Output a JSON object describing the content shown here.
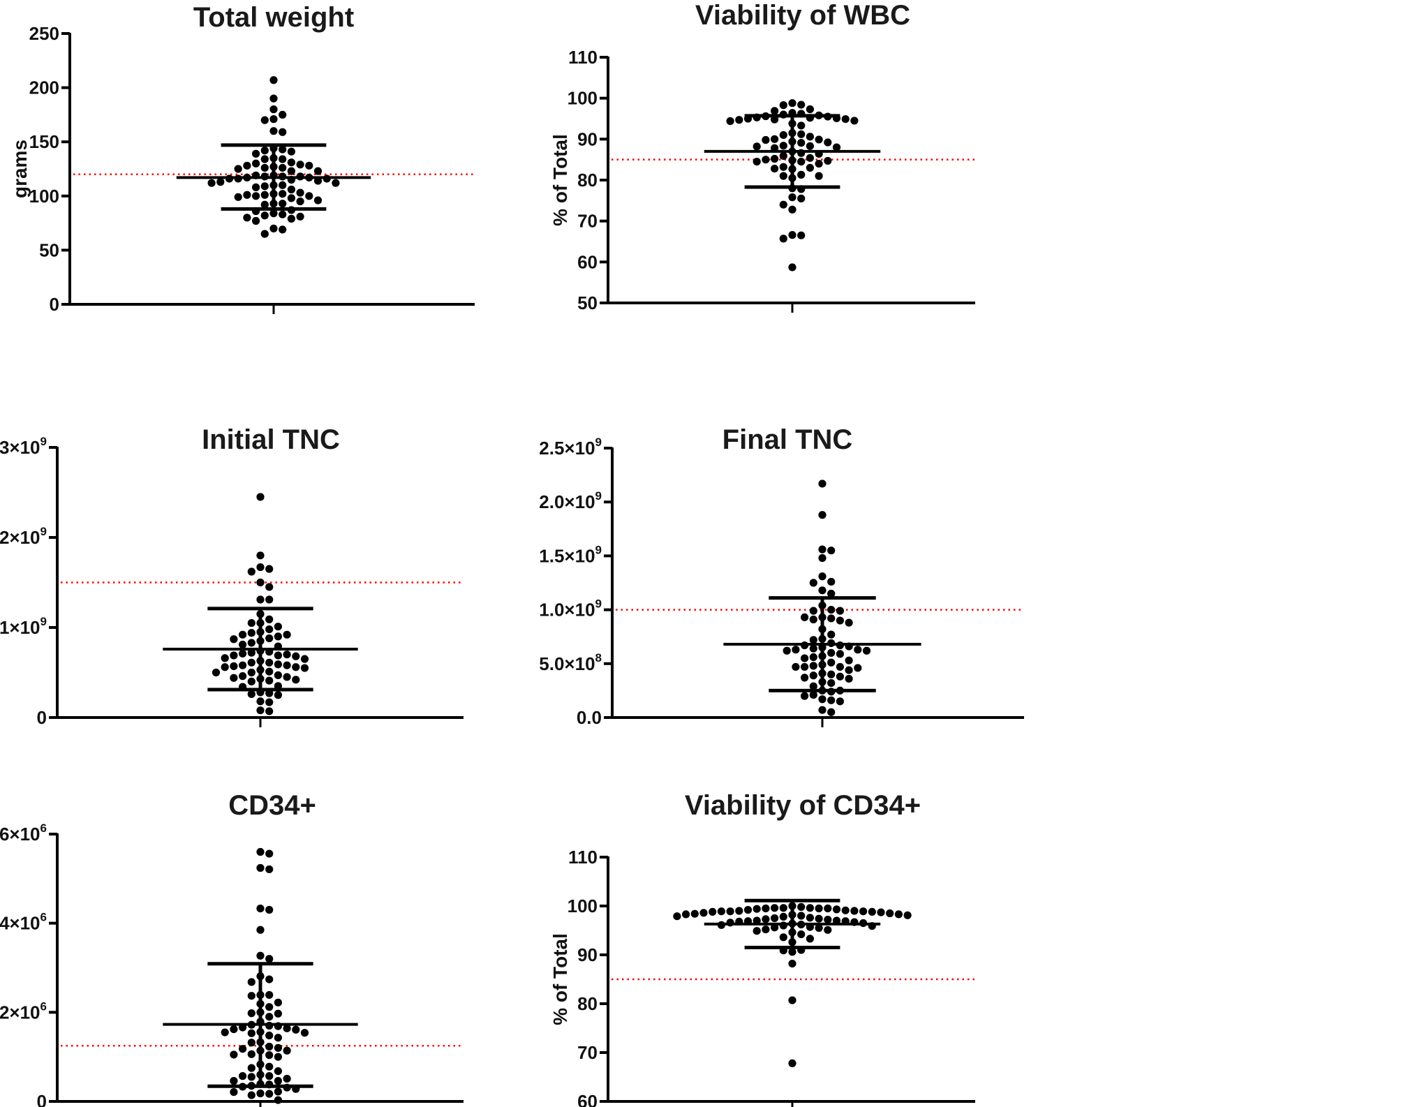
{
  "figure": {
    "background": "#ffffff",
    "point_color": "#000000",
    "threshold_color": "#ff0000"
  },
  "chart_data": [
    {
      "type": "scatter",
      "subtype": "dot-plot-mean-sd",
      "title": "Total weight",
      "ylabel": "grams",
      "xlabel": "",
      "ylim": [
        0,
        250
      ],
      "yticks": [
        0,
        50,
        100,
        150,
        200,
        250
      ],
      "ytick_labels": [
        "0",
        "50",
        "100",
        "150",
        "200",
        "250"
      ],
      "mean": 117,
      "sd_upper": 147,
      "sd_lower": 88,
      "threshold": 120,
      "values": [
        207,
        190,
        180,
        175,
        171,
        170,
        160,
        159,
        144,
        143,
        142,
        141,
        139,
        135,
        134,
        134,
        131,
        130,
        129,
        128,
        128,
        127,
        126,
        126,
        125,
        123,
        123,
        119,
        119,
        118,
        118,
        118,
        117,
        117,
        116,
        116,
        116,
        115,
        114,
        113,
        112,
        112,
        110,
        110,
        109,
        108,
        106,
        103,
        102,
        102,
        101,
        101,
        100,
        100,
        99,
        98,
        96,
        95,
        93,
        93,
        92,
        87,
        86,
        84,
        83,
        82,
        81,
        80,
        79,
        77,
        70,
        69,
        65
      ]
    },
    {
      "type": "scatter",
      "subtype": "dot-plot-mean-sd",
      "title": "Viability of WBC",
      "ylabel": "% of Total",
      "xlabel": "",
      "ylim": [
        50,
        110
      ],
      "yticks": [
        50,
        60,
        70,
        80,
        90,
        100,
        110
      ],
      "ytick_labels": [
        "50",
        "60",
        "70",
        "80",
        "90",
        "100",
        "110"
      ],
      "mean": 87,
      "sd_upper": 95.7,
      "sd_lower": 78.3,
      "threshold": 85,
      "values": [
        98.8,
        98.4,
        98.3,
        97.3,
        96.9,
        96.4,
        96.2,
        96.0,
        95.8,
        95.6,
        95.5,
        95.3,
        95.2,
        95.1,
        95.0,
        94.9,
        94.8,
        94.7,
        94.5,
        94.4,
        93.8,
        93.3,
        91.5,
        91.2,
        91.0,
        90.6,
        90.0,
        89.9,
        89.8,
        89.4,
        89.2,
        89.1,
        88.4,
        88.3,
        88.2,
        88.0,
        87.8,
        87.0,
        86.6,
        86.4,
        85.9,
        85.4,
        85.2,
        85.0,
        84.8,
        84.7,
        84.5,
        84.5,
        84.0,
        83.2,
        83.0,
        82.8,
        82.7,
        81.3,
        81.0,
        81.0,
        80.5,
        78.0,
        77.8,
        75.8,
        75.5,
        74.0,
        72.8,
        66.6,
        66.5,
        65.7,
        58.7
      ]
    },
    {
      "type": "scatter",
      "subtype": "dot-plot-mean-sd",
      "title": "Initial TNC",
      "ylabel": "",
      "xlabel": "",
      "ylim": [
        0,
        3000000000
      ],
      "yticks": [
        0,
        1000000000,
        2000000000,
        3000000000
      ],
      "ytick_labels": [
        {
          "base": "0",
          "exp": ""
        },
        {
          "base": "1×10",
          "exp": "9"
        },
        {
          "base": "2×10",
          "exp": "9"
        },
        {
          "base": "3×10",
          "exp": "9"
        }
      ],
      "mean": 760000000,
      "sd_upper": 1210000000,
      "sd_lower": 310000000,
      "threshold": 1500000000,
      "values": [
        2450000000,
        1800000000,
        1670000000,
        1650000000,
        1620000000,
        1500000000,
        1450000000,
        1310000000,
        1310000000,
        1150000000,
        1090000000,
        1050000000,
        1050000000,
        1010000000,
        980000000,
        950000000,
        940000000,
        920000000,
        920000000,
        900000000,
        880000000,
        870000000,
        850000000,
        830000000,
        810000000,
        790000000,
        740000000,
        730000000,
        720000000,
        710000000,
        700000000,
        690000000,
        690000000,
        680000000,
        660000000,
        650000000,
        630000000,
        610000000,
        610000000,
        590000000,
        580000000,
        580000000,
        570000000,
        560000000,
        560000000,
        550000000,
        530000000,
        510000000,
        500000000,
        500000000,
        470000000,
        460000000,
        450000000,
        440000000,
        430000000,
        420000000,
        410000000,
        400000000,
        350000000,
        340000000,
        280000000,
        270000000,
        260000000,
        250000000,
        180000000,
        170000000,
        80000000,
        70000000
      ]
    },
    {
      "type": "scatter",
      "subtype": "dot-plot-mean-sd",
      "title": "Final TNC",
      "ylabel": "",
      "xlabel": "",
      "ylim": [
        0,
        2500000000
      ],
      "yticks": [
        0,
        500000000,
        1000000000,
        1500000000,
        2000000000,
        2500000000
      ],
      "ytick_labels": [
        {
          "base": "0.0",
          "exp": ""
        },
        {
          "base": "5.0×10",
          "exp": "8"
        },
        {
          "base": "1.0×10",
          "exp": "9"
        },
        {
          "base": "1.5×10",
          "exp": "9"
        },
        {
          "base": "2.0×10",
          "exp": "9"
        },
        {
          "base": "2.5×10",
          "exp": "9"
        }
      ],
      "mean": 680000000,
      "sd_upper": 1110000000,
      "sd_lower": 250000000,
      "threshold": 1000000000,
      "values": [
        2170000000,
        1880000000,
        1560000000,
        1550000000,
        1480000000,
        1310000000,
        1260000000,
        1250000000,
        1180000000,
        1150000000,
        1040000000,
        1000000000,
        990000000,
        990000000,
        930000000,
        930000000,
        920000000,
        910000000,
        900000000,
        880000000,
        820000000,
        770000000,
        730000000,
        720000000,
        690000000,
        670000000,
        670000000,
        660000000,
        650000000,
        640000000,
        630000000,
        630000000,
        620000000,
        620000000,
        600000000,
        590000000,
        570000000,
        560000000,
        550000000,
        530000000,
        510000000,
        490000000,
        480000000,
        470000000,
        470000000,
        470000000,
        460000000,
        440000000,
        410000000,
        400000000,
        390000000,
        380000000,
        370000000,
        360000000,
        330000000,
        320000000,
        290000000,
        250000000,
        250000000,
        240000000,
        210000000,
        200000000,
        170000000,
        160000000,
        150000000,
        70000000,
        50000000
      ]
    },
    {
      "type": "scatter",
      "subtype": "dot-plot-mean-sd",
      "title": "CD34+",
      "ylabel": "",
      "xlabel": "",
      "ylim": [
        0,
        6000000
      ],
      "yticks": [
        0,
        2000000,
        4000000,
        6000000
      ],
      "ytick_labels": [
        {
          "base": "0",
          "exp": ""
        },
        {
          "base": "2×10",
          "exp": "6"
        },
        {
          "base": "4×10",
          "exp": "6"
        },
        {
          "base": "6×10",
          "exp": "6"
        }
      ],
      "mean": 1730000.0,
      "sd_upper": 3090000,
      "sd_lower": 340000,
      "threshold": 1250000,
      "values": [
        5600000,
        5560000,
        5240000,
        5210000,
        4330000,
        4300000,
        3850000,
        3270000,
        3200000,
        2810000,
        2740000,
        2680000,
        2390000,
        2390000,
        2370000,
        2220000,
        2190000,
        2120000,
        2000000,
        1980000,
        1970000,
        1900000,
        1790000,
        1720000,
        1700000,
        1690000,
        1660000,
        1640000,
        1620000,
        1610000,
        1560000,
        1550000,
        1540000,
        1530000,
        1480000,
        1430000,
        1330000,
        1320000,
        1230000,
        1200000,
        1180000,
        1140000,
        1140000,
        1060000,
        1050000,
        1040000,
        1000000,
        830000,
        780000,
        750000,
        680000,
        600000,
        570000,
        570000,
        550000,
        510000,
        460000,
        460000,
        390000,
        380000,
        350000,
        330000,
        310000,
        280000,
        220000,
        210000,
        180000,
        170000,
        140000,
        30000
      ]
    },
    {
      "type": "scatter",
      "subtype": "dot-plot-mean-sd",
      "title": "Viability of CD34+",
      "ylabel": "% of Total",
      "xlabel": "",
      "ylim": [
        60,
        110
      ],
      "yticks": [
        60,
        70,
        80,
        90,
        100,
        110
      ],
      "ytick_labels": [
        "60",
        "70",
        "80",
        "90",
        "100",
        "110"
      ],
      "mean": 96.3,
      "sd_upper": 101.1,
      "sd_lower": 91.5,
      "threshold": 85,
      "values": [
        100.0,
        99.8,
        99.6,
        99.6,
        99.6,
        99.5,
        99.5,
        99.5,
        99.4,
        99.3,
        99.2,
        99.1,
        99.0,
        99.0,
        98.9,
        98.9,
        98.9,
        98.8,
        98.8,
        98.7,
        98.6,
        98.5,
        98.4,
        98.3,
        98.3,
        98.2,
        98.1,
        98.0,
        97.9,
        97.8,
        97.6,
        97.5,
        97.4,
        97.3,
        97.2,
        97.0,
        97.0,
        96.9,
        96.9,
        96.8,
        96.7,
        96.6,
        96.5,
        96.4,
        96.2,
        96.1,
        96.0,
        95.9,
        95.7,
        95.6,
        95.5,
        95.2,
        95.1,
        94.9,
        94.6,
        94.2,
        93.6,
        93.3,
        92.6,
        91.0,
        90.9,
        90.6,
        88.2,
        80.7,
        67.8
      ]
    }
  ]
}
